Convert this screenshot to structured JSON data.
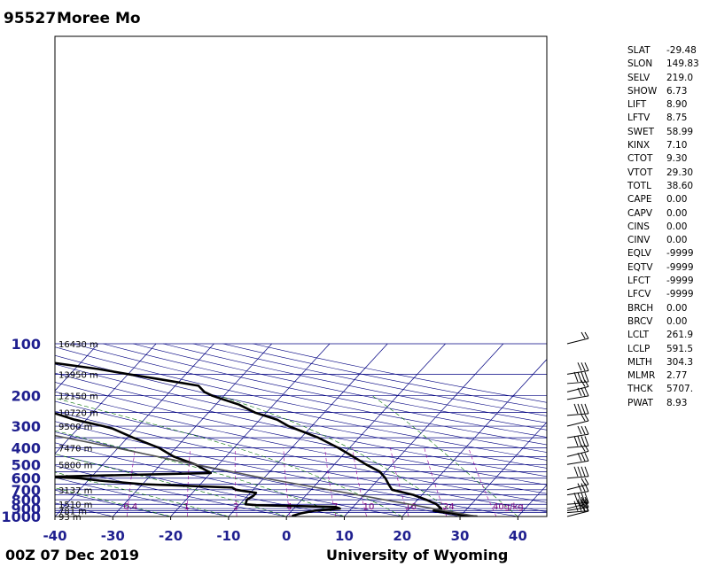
{
  "header": {
    "station_id": "95527",
    "station_name": "Moree Mo"
  },
  "footer": {
    "time": "00Z 07 Dec 2019",
    "source": "University of Wyoming"
  },
  "indices": [
    {
      "k": "SLAT",
      "v": "-29.48"
    },
    {
      "k": "SLON",
      "v": "149.83"
    },
    {
      "k": "SELV",
      "v": "219.0"
    },
    {
      "k": "SHOW",
      "v": "6.73"
    },
    {
      "k": "LIFT",
      "v": "8.90"
    },
    {
      "k": "LFTV",
      "v": "8.75"
    },
    {
      "k": "SWET",
      "v": "58.99"
    },
    {
      "k": "KINX",
      "v": "7.10"
    },
    {
      "k": "CTOT",
      "v": "9.30"
    },
    {
      "k": "VTOT",
      "v": "29.30"
    },
    {
      "k": "TOTL",
      "v": "38.60"
    },
    {
      "k": "CAPE",
      "v": "0.00"
    },
    {
      "k": "CAPV",
      "v": "0.00"
    },
    {
      "k": "CINS",
      "v": "0.00"
    },
    {
      "k": "CINV",
      "v": "0.00"
    },
    {
      "k": "EQLV",
      "v": "-9999"
    },
    {
      "k": "EQTV",
      "v": "-9999"
    },
    {
      "k": "LFCT",
      "v": "-9999"
    },
    {
      "k": "LFCV",
      "v": "-9999"
    },
    {
      "k": "BRCH",
      "v": "0.00"
    },
    {
      "k": "BRCV",
      "v": "0.00"
    },
    {
      "k": "LCLT",
      "v": "261.9"
    },
    {
      "k": "LCLP",
      "v": "591.5"
    },
    {
      "k": "MLTH",
      "v": "304.3"
    },
    {
      "k": "MLMR",
      "v": "2.77"
    },
    {
      "k": "THCK",
      "v": "5707."
    },
    {
      "k": "PWAT",
      "v": "8.93"
    }
  ],
  "chart_data": {
    "type": "line",
    "subtype": "skew-t log-p",
    "title": "95527 Moree Mo",
    "xlabel": "",
    "ylabel": "",
    "xlim": [
      -40,
      45
    ],
    "ylim": [
      1000,
      100
    ],
    "y_scale": "log",
    "x_ticks": [
      "-40",
      "-30",
      "-20",
      "-10",
      "0",
      "10",
      "20",
      "30",
      "40"
    ],
    "y_ticks": [
      "100",
      "200",
      "300",
      "400",
      "500",
      "600",
      "700",
      "800",
      "900",
      "1000"
    ],
    "height_labels": [
      {
        "p": 100,
        "text": "16430 m"
      },
      {
        "p": 150,
        "text": "13950 m"
      },
      {
        "p": 200,
        "text": "12150 m"
      },
      {
        "p": 250,
        "text": "10720 m"
      },
      {
        "p": 300,
        "text": "9500 m"
      },
      {
        "p": 400,
        "text": "7470 m"
      },
      {
        "p": 500,
        "text": "5800 m"
      },
      {
        "p": 700,
        "text": "3137 m"
      },
      {
        "p": 850,
        "text": "1510 m"
      },
      {
        "p": 925,
        "text": "781 m"
      },
      {
        "p": 1000,
        "text": "93 m"
      }
    ],
    "mixing_ratio_labels": [
      "0.4",
      "1",
      "2",
      "4",
      "7",
      "10",
      "16",
      "24",
      "40g/kg"
    ],
    "series": [
      {
        "color": "#000000",
        "points": [
          [
            1000,
            33.0
          ],
          [
            990,
            31.0
          ],
          [
            950,
            27.0
          ],
          [
            925,
            24.5
          ],
          [
            900,
            25.5
          ],
          [
            850,
            24.0
          ],
          [
            800,
            21.5
          ],
          [
            750,
            18.5
          ],
          [
            700,
            14.0
          ],
          [
            650,
            12.5
          ],
          [
            600,
            11.0
          ],
          [
            550,
            9.0
          ],
          [
            500,
            5.5
          ],
          [
            450,
            2.0
          ],
          [
            400,
            -2.0
          ],
          [
            350,
            -7.0
          ],
          [
            300,
            -14.0
          ],
          [
            275,
            -17.0
          ],
          [
            250,
            -22.0
          ],
          [
            225,
            -26.0
          ],
          [
            200,
            -32.0
          ],
          [
            190,
            -34.0
          ],
          [
            175,
            -36.0
          ],
          [
            160,
            -44.0
          ],
          [
            150,
            -50.0
          ],
          [
            140,
            -56.0
          ],
          [
            125,
            -68.0
          ],
          [
            110,
            -76.0
          ],
          [
            104,
            -79.0
          ],
          [
            100,
            -79.0
          ]
        ]
      },
      {
        "color": "#000000",
        "points": [
          [
            1000,
            1.0
          ],
          [
            990,
            1.0
          ],
          [
            960,
            2.0
          ],
          [
            925,
            4.0
          ],
          [
            900,
            8.0
          ],
          [
            880,
            7.0
          ],
          [
            860,
            -7.0
          ],
          [
            850,
            -9.0
          ],
          [
            800,
            -9.5
          ],
          [
            760,
            -9.0
          ],
          [
            730,
            -9.0
          ],
          [
            700,
            -13.0
          ],
          [
            680,
            -14.0
          ],
          [
            650,
            -30.0
          ],
          [
            620,
            -38.0
          ],
          [
            600,
            -42.0
          ],
          [
            590,
            -48.0
          ],
          [
            560,
            -20.0
          ],
          [
            500,
            -24.0
          ],
          [
            450,
            -29.0
          ],
          [
            400,
            -33.0
          ],
          [
            350,
            -39.0
          ],
          [
            310,
            -44.0
          ],
          [
            300,
            -46.0
          ],
          [
            275,
            -52.0
          ],
          [
            250,
            -57.0
          ],
          [
            225,
            -63.0
          ],
          [
            205,
            -65.0
          ],
          [
            200,
            -68.0
          ],
          [
            190,
            -70.0
          ],
          [
            170,
            -76.0
          ],
          [
            150,
            -87.0
          ],
          [
            125,
            -95.0
          ],
          [
            110,
            -98.0
          ],
          [
            100,
            -100.0
          ]
        ]
      },
      {
        "color": "#555555",
        "points": [
          [
            1000,
            33.0
          ],
          [
            591.5,
            -11.1
          ],
          [
            500,
            -24.0
          ],
          [
            400,
            -40.5
          ],
          [
            300,
            -62.5
          ],
          [
            200,
            -91.0
          ]
        ]
      }
    ]
  }
}
